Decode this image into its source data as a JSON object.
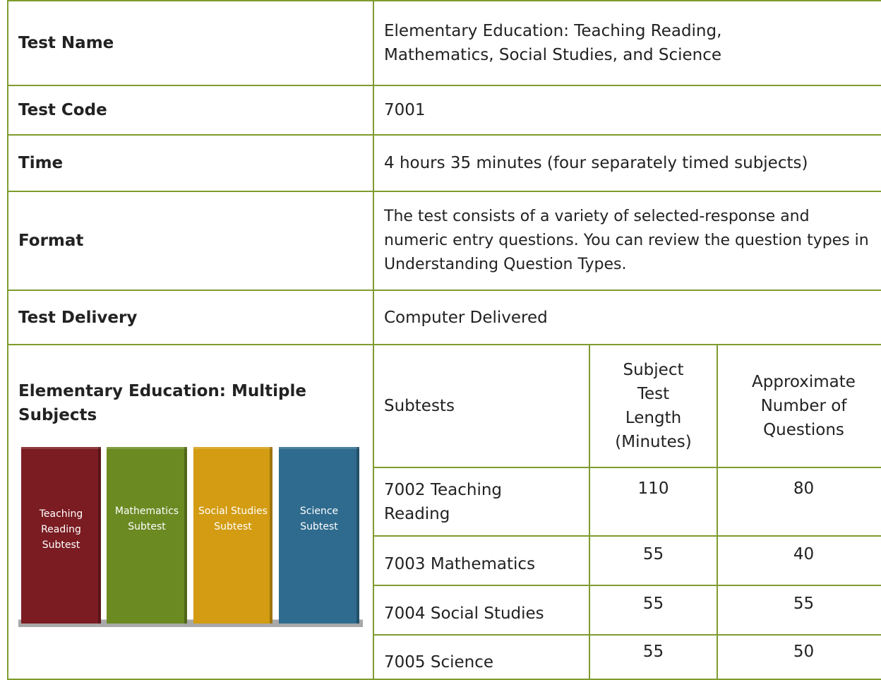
{
  "table": {
    "rows": [
      [
        "Test Name",
        "Elementary Education: Teaching Reading, Mathematics, Social Studies, and Science"
      ],
      [
        "Test Code",
        "7001"
      ],
      [
        "Time",
        "4 hours 35 minutes (four separately timed subjects)"
      ],
      [
        "Format",
        "The test consists of a variety of selected-response and numeric entry questions. You can review the question types in Understanding Question Types."
      ],
      [
        "Test Delivery",
        "Computer Delivered"
      ]
    ],
    "subtests": {
      "title": "Elementary Education: Multiple Subjects",
      "books": [
        "Teaching Reading Subtest",
        "Mathematics Subtest",
        "Social Studies Subtest",
        "Science Subtest"
      ],
      "header": [
        "Subtests",
        "Subject Test Length (Minutes)",
        "Approximate Number of Questions"
      ],
      "rows": [
        [
          "7002 Teaching Reading",
          110,
          80
        ],
        [
          "7003 Mathematics",
          55,
          40
        ],
        [
          "7004 Social Studies",
          55,
          55
        ],
        [
          "7005 Science",
          55,
          50
        ]
      ]
    }
  }
}
